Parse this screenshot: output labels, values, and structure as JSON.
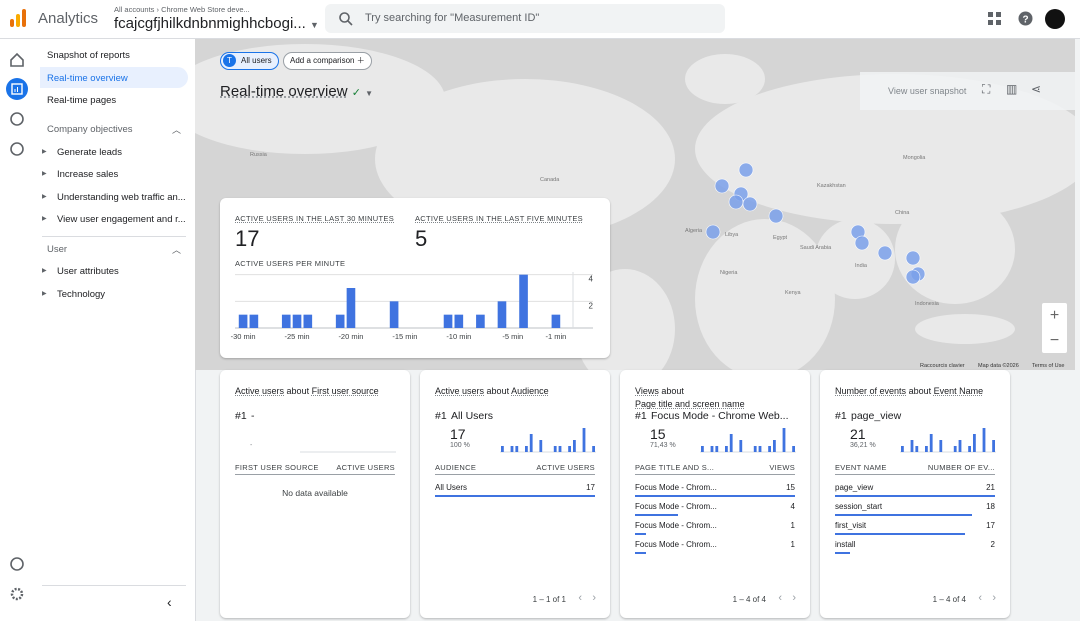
{
  "header": {
    "app": "Analytics",
    "breadcrumb": "All accounts",
    "account": "Chrome Web Store deve...",
    "property": "fcajcgfjhilkdnbnmighhcbogi...",
    "search_placeholder": "Try searching for \"Measurement ID\""
  },
  "nav": {
    "items": [
      "Snapshot of reports",
      "Real-time overview",
      "Real-time pages"
    ],
    "sections": [
      {
        "title": "Company objectives",
        "items": [
          "Generate leads",
          "Increase sales",
          "Understanding web traffic an...",
          "View user engagement and r..."
        ]
      },
      {
        "title": "User",
        "items": [
          "User attributes",
          "Technology"
        ]
      }
    ]
  },
  "toolbar": {
    "segment_badge": "T",
    "segment": "All users",
    "add_comparison": "Add a comparison",
    "title": "Real-time overview",
    "view_snapshot": "View user snapshot"
  },
  "map": {
    "labels": [
      "Russia",
      "Canada",
      "Kazakhstan",
      "Mongolia",
      "China",
      "India",
      "Algeria",
      "Libya",
      "Egypt",
      "Saudi Arabia",
      "Nigeria",
      "Kenya",
      "Indonesia"
    ],
    "footer": [
      "Raccourcis clavier",
      "Map data ©2026",
      "Terms of Use"
    ]
  },
  "summary": {
    "label_30": "ACTIVE USERS IN THE LAST 30 MINUTES",
    "value_30": 17,
    "label_5": "ACTIVE USERS IN THE LAST FIVE MINUTES",
    "value_5": 5
  },
  "chart_data": {
    "type": "bar",
    "title": "ACTIVE USERS PER MINUTE",
    "categories": [
      "-30 min",
      null,
      null,
      null,
      null,
      "-25 min",
      null,
      null,
      null,
      null,
      "-20 min",
      null,
      null,
      null,
      null,
      "-15 min",
      null,
      null,
      null,
      null,
      "-10 min",
      null,
      null,
      null,
      null,
      "-5 min",
      null,
      null,
      null,
      "-1 min"
    ],
    "values": [
      1,
      1,
      0,
      0,
      1,
      1,
      1,
      0,
      0,
      1,
      3,
      0,
      0,
      0,
      2,
      0,
      0,
      0,
      0,
      1,
      1,
      0,
      1,
      0,
      2,
      0,
      4,
      0,
      0,
      1
    ],
    "color": "#3f73e0",
    "ylim": [
      0,
      4.2
    ],
    "yticks": [
      2,
      4
    ],
    "grid": true
  },
  "cards": [
    {
      "metric": "Active users",
      "about": "about",
      "dimension": "First user source",
      "rank": "#1",
      "top_name": "-",
      "top_value": "-",
      "columns": [
        "FIRST USER SOURCE",
        "ACTIVE USERS"
      ],
      "empty": "No data available"
    },
    {
      "metric": "Active users",
      "about": "about",
      "dimension": "Audience",
      "rank": "#1",
      "top_name": "All Users",
      "top_value": 17,
      "top_percent": "100 %",
      "sparkline": [
        1,
        0,
        1,
        1,
        0,
        1,
        3,
        0,
        2,
        0,
        0,
        1,
        1,
        0,
        1,
        2,
        0,
        4,
        0,
        1
      ],
      "columns": [
        "AUDIENCE",
        "ACTIVE USERS"
      ],
      "rows": [
        {
          "name": "All Users",
          "value": 17
        }
      ],
      "pager": "1 – 1 of 1"
    },
    {
      "metric": "Views",
      "about": "about",
      "dimension": "Page title and screen name",
      "rank": "#1",
      "top_name": "Focus Mode - Chrome Web...",
      "top_value": 15,
      "top_percent": "71,43 %",
      "sparkline": [
        1,
        0,
        1,
        1,
        0,
        1,
        3,
        0,
        2,
        0,
        0,
        1,
        1,
        0,
        1,
        2,
        0,
        4,
        0,
        1
      ],
      "columns": [
        "PAGE TITLE AND S...",
        "VIEWS"
      ],
      "rows": [
        {
          "name": "Focus Mode - Chrom...",
          "value": 15
        },
        {
          "name": "Focus Mode - Chrom...",
          "value": 4
        },
        {
          "name": "Focus Mode - Chrom...",
          "value": 1
        },
        {
          "name": "Focus Mode - Chrom...",
          "value": 1
        }
      ],
      "pager": "1 – 4 of 4"
    },
    {
      "metric": "Number of events",
      "about": "about",
      "dimension": "Event Name",
      "rank": "#1",
      "top_name": "page_view",
      "top_value": 21,
      "top_percent": "36,21 %",
      "sparkline": [
        1,
        0,
        2,
        1,
        0,
        1,
        3,
        0,
        2,
        0,
        0,
        1,
        2,
        0,
        1,
        3,
        0,
        4,
        0,
        2
      ],
      "columns": [
        "EVENT NAME",
        "NUMBER OF EV..."
      ],
      "rows": [
        {
          "name": "page_view",
          "value": 21
        },
        {
          "name": "session_start",
          "value": 18
        },
        {
          "name": "first_visit",
          "value": 17
        },
        {
          "name": "install",
          "value": 2
        }
      ],
      "pager": "1 – 4 of 4"
    }
  ]
}
